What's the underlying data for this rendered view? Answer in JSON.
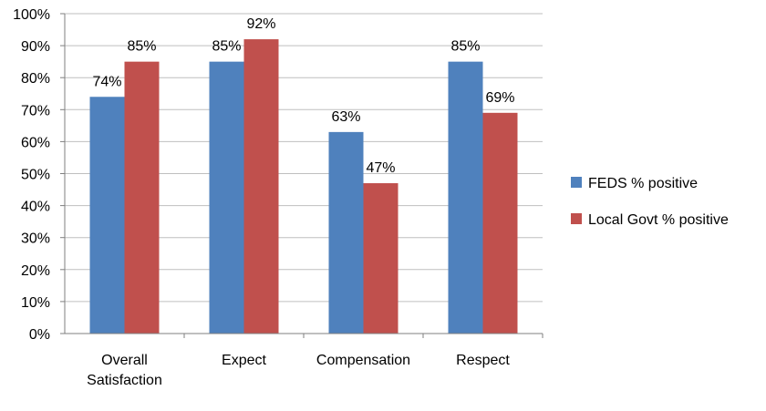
{
  "chart_data": {
    "type": "bar",
    "categories": [
      [
        "Overall",
        "Satisfaction"
      ],
      [
        "Expect"
      ],
      [
        "Compensation"
      ],
      [
        "Respect"
      ]
    ],
    "series": [
      {
        "name": "FEDS % positive",
        "color": "#4f81bd",
        "values": [
          74,
          85,
          63,
          85
        ],
        "labels": [
          "74%",
          "85%",
          "63%",
          "85%"
        ]
      },
      {
        "name": "Local Govt % positive",
        "color": "#c0504d",
        "values": [
          85,
          92,
          47,
          69
        ],
        "labels": [
          "85%",
          "92%",
          "47%",
          "69%"
        ]
      }
    ],
    "ylim": [
      0,
      100
    ],
    "yticks": [
      0,
      10,
      20,
      30,
      40,
      50,
      60,
      70,
      80,
      90,
      100
    ],
    "ytick_labels": [
      "0%",
      "10%",
      "20%",
      "30%",
      "40%",
      "50%",
      "60%",
      "70%",
      "80%",
      "90%",
      "100%"
    ],
    "grid": true,
    "legend_position": "right"
  }
}
